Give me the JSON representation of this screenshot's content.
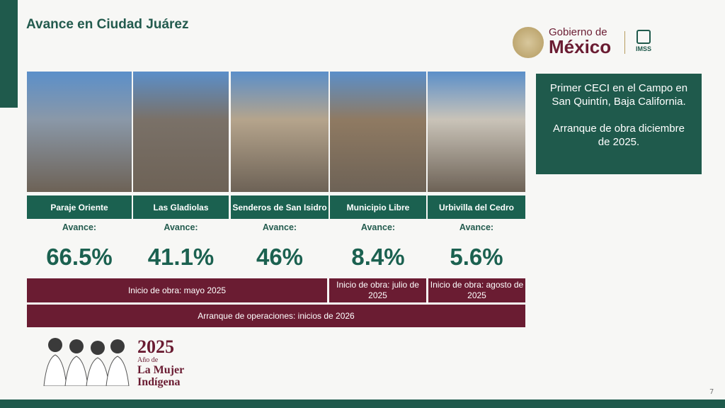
{
  "title": "Avance en Ciudad Juárez",
  "logo": {
    "gob_line1": "Gobierno de",
    "gob_line2": "México",
    "imss": "IMSS"
  },
  "sites": [
    {
      "name": "Paraje Oriente",
      "avance_label": "Avance:",
      "avance": "66.5%",
      "photo_color": "#8a98a8"
    },
    {
      "name": "Las Gladiolas",
      "avance_label": "Avance:",
      "avance": "41.1%",
      "photo_color": "#7a7168"
    },
    {
      "name": "Senderos de San Isidro",
      "avance_label": "Avance:",
      "avance": "46%",
      "photo_color": "#b5a48c"
    },
    {
      "name": "Municipio Libre",
      "avance_label": "Avance:",
      "avance": "8.4%",
      "photo_color": "#8f7a62"
    },
    {
      "name": "Urbivilla del Cedro",
      "avance_label": "Avance:",
      "avance": "5.6%",
      "photo_color": "#c9c3b8"
    }
  ],
  "inicio": {
    "group": "Inicio de obra: mayo 2025",
    "municipio": "Inicio de obra: julio de 2025",
    "urbivilla": "Inicio de obra: agosto de 2025"
  },
  "arranque": "Arranque de operaciones: inicios de 2026",
  "callout": {
    "line1": "Primer CECI en el Campo en San Quintín, Baja California.",
    "line2": "Arranque de obra diciembre de 2025."
  },
  "bottom_logo": {
    "year": "2025",
    "line1": "Año de",
    "line2": "La Mujer",
    "line3": "Indígena"
  },
  "page_number": "7",
  "colors": {
    "green": "#1f5a4c",
    "maroon": "#6a1c32",
    "gold": "#b79c5f"
  }
}
